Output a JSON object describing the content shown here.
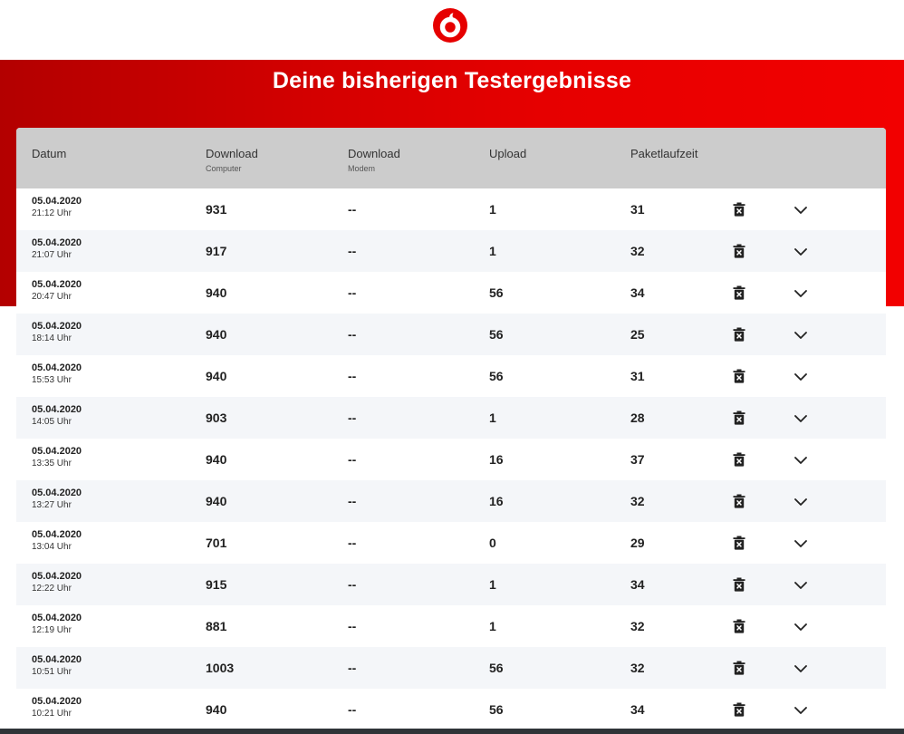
{
  "brand": {
    "logo_icon": "vodafone-logo-icon",
    "accent_color": "#e60000"
  },
  "header": {
    "title": "Deine bisherigen Testergebnisse"
  },
  "table": {
    "columns": {
      "datum": "Datum",
      "download_computer": "Download",
      "download_computer_sub": "Computer",
      "download_modem": "Download",
      "download_modem_sub": "Modem",
      "upload": "Upload",
      "paketlaufzeit": "Paketlaufzeit"
    },
    "rows": [
      {
        "date": "05.04.2020",
        "time": "21:12 Uhr",
        "download_computer": "931",
        "download_modem": "--",
        "upload": "1",
        "ping": "31"
      },
      {
        "date": "05.04.2020",
        "time": "21:07 Uhr",
        "download_computer": "917",
        "download_modem": "--",
        "upload": "1",
        "ping": "32"
      },
      {
        "date": "05.04.2020",
        "time": "20:47 Uhr",
        "download_computer": "940",
        "download_modem": "--",
        "upload": "56",
        "ping": "34"
      },
      {
        "date": "05.04.2020",
        "time": "18:14 Uhr",
        "download_computer": "940",
        "download_modem": "--",
        "upload": "56",
        "ping": "25"
      },
      {
        "date": "05.04.2020",
        "time": "15:53 Uhr",
        "download_computer": "940",
        "download_modem": "--",
        "upload": "56",
        "ping": "31"
      },
      {
        "date": "05.04.2020",
        "time": "14:05 Uhr",
        "download_computer": "903",
        "download_modem": "--",
        "upload": "1",
        "ping": "28"
      },
      {
        "date": "05.04.2020",
        "time": "13:35 Uhr",
        "download_computer": "940",
        "download_modem": "--",
        "upload": "16",
        "ping": "37"
      },
      {
        "date": "05.04.2020",
        "time": "13:27 Uhr",
        "download_computer": "940",
        "download_modem": "--",
        "upload": "16",
        "ping": "32"
      },
      {
        "date": "05.04.2020",
        "time": "13:04 Uhr",
        "download_computer": "701",
        "download_modem": "--",
        "upload": "0",
        "ping": "29"
      },
      {
        "date": "05.04.2020",
        "time": "12:22 Uhr",
        "download_computer": "915",
        "download_modem": "--",
        "upload": "1",
        "ping": "34"
      },
      {
        "date": "05.04.2020",
        "time": "12:19 Uhr",
        "download_computer": "881",
        "download_modem": "--",
        "upload": "1",
        "ping": "32"
      },
      {
        "date": "05.04.2020",
        "time": "10:51 Uhr",
        "download_computer": "1003",
        "download_modem": "--",
        "upload": "56",
        "ping": "32"
      },
      {
        "date": "05.04.2020",
        "time": "10:21 Uhr",
        "download_computer": "940",
        "download_modem": "--",
        "upload": "56",
        "ping": "34"
      }
    ],
    "row_icons": {
      "delete": "trash-icon",
      "expand": "chevron-down-icon"
    }
  }
}
